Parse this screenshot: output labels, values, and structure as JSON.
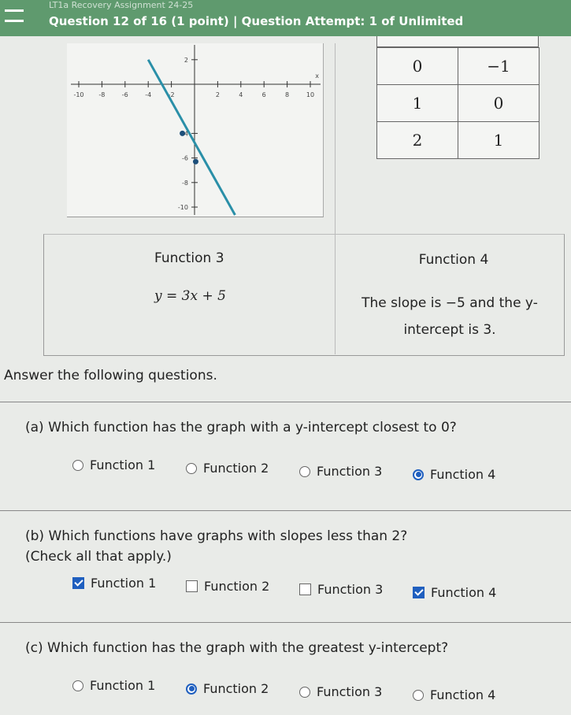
{
  "header": {
    "course": "LT1a Recovery Assignment 24-25",
    "question": "Question 12 of 16 (1 point)",
    "separator": "|",
    "attempt": "Question Attempt: 1 of Unlimited"
  },
  "graph": {
    "x_tick_labels": [
      "-10",
      "-8",
      "-6",
      "-4",
      "-2",
      "2",
      "4",
      "6",
      "8",
      "10"
    ],
    "y_tick_labels": [
      "2",
      "-4",
      "-6",
      "-8",
      "-10"
    ],
    "x_axis_label": "x"
  },
  "table": {
    "rows": [
      [
        "0",
        "−1"
      ],
      [
        "1",
        "0"
      ],
      [
        "2",
        "1"
      ]
    ]
  },
  "functions": [
    {
      "name": "Function 3",
      "text": "y = 3x + 5"
    },
    {
      "name": "Function 4",
      "text": "The slope is −5 and the y-intercept is 3."
    }
  ],
  "prompt": "Answer the following questions.",
  "questions": [
    {
      "text": "(a) Which function has the graph with a y-intercept closest to 0?",
      "kind": "radio",
      "options": [
        {
          "label": "Function 1",
          "selected": false
        },
        {
          "label": "Function 2",
          "selected": false
        },
        {
          "label": "Function 3",
          "selected": false
        },
        {
          "label": "Function 4",
          "selected": true
        }
      ]
    },
    {
      "text": "(b) Which functions have graphs with slopes less than 2?",
      "note": "(Check all that apply.)",
      "kind": "checkbox",
      "options": [
        {
          "label": "Function 1",
          "selected": true
        },
        {
          "label": "Function 2",
          "selected": false
        },
        {
          "label": "Function 3",
          "selected": false
        },
        {
          "label": "Function 4",
          "selected": true
        }
      ]
    },
    {
      "text": "(c) Which function has the graph with the greatest y-intercept?",
      "kind": "radio",
      "options": [
        {
          "label": "Function 1",
          "selected": false
        },
        {
          "label": "Function 2",
          "selected": true
        },
        {
          "label": "Function 3",
          "selected": false
        },
        {
          "label": "Function 4",
          "selected": false
        }
      ]
    }
  ]
}
